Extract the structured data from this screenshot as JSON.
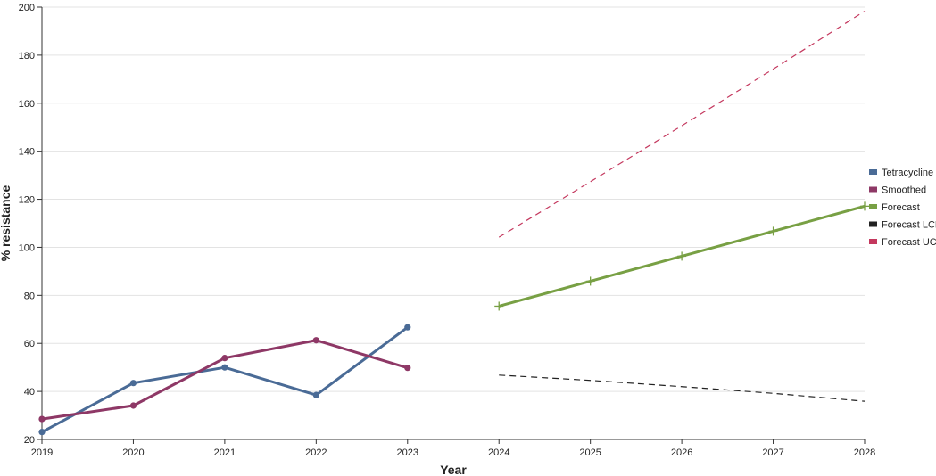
{
  "chart_data": {
    "type": "line",
    "xlabel": "Year",
    "ylabel": "% resistance",
    "xlim": [
      2019,
      2028
    ],
    "ylim": [
      20,
      200
    ],
    "x_ticks": [
      "2019",
      "2020",
      "2021",
      "2022",
      "2023",
      "2024",
      "2025",
      "2026",
      "2027",
      "2028"
    ],
    "y_ticks": [
      "20",
      "40",
      "60",
      "80",
      "100",
      "120",
      "140",
      "160",
      "180",
      "200"
    ],
    "grid": true,
    "legend_position": "right",
    "series": [
      {
        "name": "Tetracycline",
        "color": "#4a6b96",
        "style": "solid",
        "marker": "dot",
        "x": [
          2019,
          2020,
          2021,
          2022,
          2023
        ],
        "values": [
          23.1,
          43.5,
          50.0,
          38.5,
          66.7
        ]
      },
      {
        "name": "Smoothed",
        "color": "#8e3866",
        "style": "solid",
        "marker": "dot",
        "x": [
          2019,
          2020,
          2021,
          2022,
          2023
        ],
        "values": [
          28.5,
          34.1,
          53.9,
          61.3,
          49.8
        ]
      },
      {
        "name": "Forecast",
        "color": "#78a044",
        "style": "solid",
        "marker": "cross",
        "x": [
          2024,
          2025,
          2026,
          2027,
          2028
        ],
        "values": [
          75.5,
          85.9,
          96.3,
          106.7,
          117.1
        ]
      },
      {
        "name": "Forecast LCL",
        "color": "#222222",
        "style": "dashed",
        "marker": "none",
        "x": [
          2024,
          2025,
          2026,
          2027,
          2028
        ],
        "values": [
          46.8,
          44.6,
          42.0,
          39.2,
          35.9
        ]
      },
      {
        "name": "Forecast UCL",
        "color": "#c4385e",
        "style": "dashed",
        "marker": "none",
        "x": [
          2024,
          2025,
          2026,
          2027,
          2028
        ],
        "values": [
          104.2,
          127.3,
          150.6,
          174.2,
          198.3
        ]
      }
    ]
  }
}
